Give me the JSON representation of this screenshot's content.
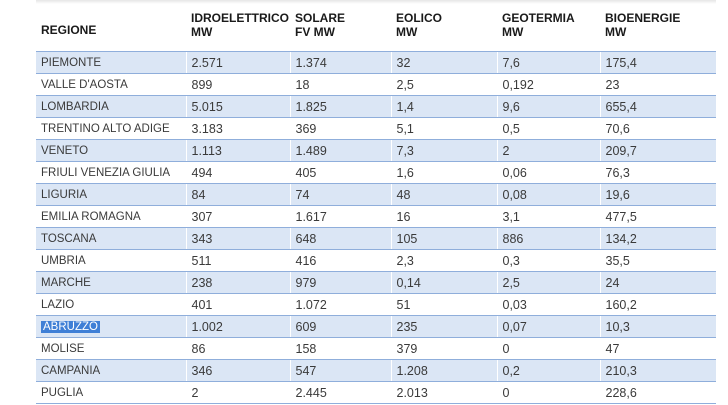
{
  "table": {
    "headers": [
      {
        "name": "REGIONE",
        "unit": ""
      },
      {
        "name": "IDROELETTRICO",
        "unit": "MW"
      },
      {
        "name": "SOLARE",
        "unit": "FV MW"
      },
      {
        "name": "EOLICO",
        "unit": "MW"
      },
      {
        "name": "GEOTERMIA",
        "unit": "MW"
      },
      {
        "name": "BIOENERGIE",
        "unit": "MW"
      }
    ],
    "rows": [
      [
        "PIEMONTE",
        "2.571",
        "1.374",
        "32",
        "7,6",
        "175,4"
      ],
      [
        "VALLE D'AOSTA",
        "899",
        "18",
        "2,5",
        "0,192",
        "23"
      ],
      [
        "LOMBARDIA",
        "5.015",
        "1.825",
        "1,4",
        "9,6",
        "655,4"
      ],
      [
        "TRENTINO ALTO ADIGE",
        "3.183",
        "369",
        "5,1",
        "0,5",
        "70,6"
      ],
      [
        "VENETO",
        "1.113",
        "1.489",
        "7,3",
        "2",
        "209,7"
      ],
      [
        "FRIULI VENEZIA GIULIA",
        "494",
        "405",
        "1,6",
        "0,06",
        "76,3"
      ],
      [
        "LIGURIA",
        "84",
        "74",
        "48",
        "0,08",
        "19,6"
      ],
      [
        "EMILIA ROMAGNA",
        "307",
        "1.617",
        "16",
        "3,1",
        "477,5"
      ],
      [
        "TOSCANA",
        "343",
        "648",
        "105",
        "886",
        "134,2"
      ],
      [
        "UMBRIA",
        "511",
        "416",
        "2,3",
        "0,3",
        "35,5"
      ],
      [
        "MARCHE",
        "238",
        "979",
        "0,14",
        "2,5",
        "24"
      ],
      [
        "LAZIO",
        "401",
        "1.072",
        "51",
        "0,03",
        "160,2"
      ],
      [
        "ABRUZZO",
        "1.002",
        "609",
        "235",
        "0,07",
        "10,3"
      ],
      [
        "MOLISE",
        "86",
        "158",
        "379",
        "0",
        "47"
      ],
      [
        "CAMPANIA",
        "346",
        "547",
        "1.208",
        "0,2",
        "210,3"
      ],
      [
        "PUGLIA",
        "2",
        "2.445",
        "2.013",
        "0",
        "228,6"
      ]
    ],
    "selected_row_index": 12,
    "colors": {
      "band": "#dbe6f5",
      "rule": "#8faedb",
      "selection": "#3f7fd6"
    }
  }
}
